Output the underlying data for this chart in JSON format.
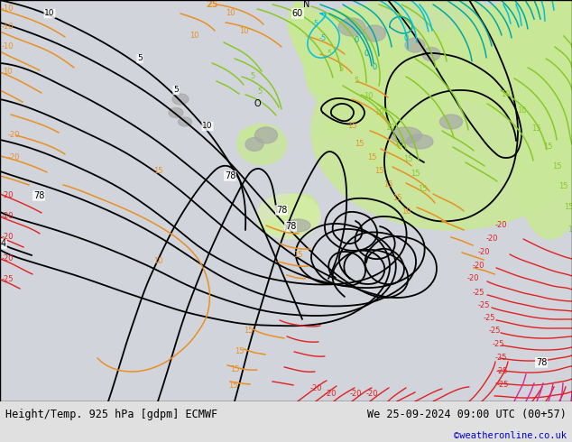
{
  "title_left": "Height/Temp. 925 hPa [gdpm] ECMWF",
  "title_right": "We 25-09-2024 09:00 UTC (00+57)",
  "copyright": "©weatheronline.co.uk",
  "sea_color": "#d8d8e0",
  "land_light_green": "#c8e8a0",
  "land_grey": "#b8b8b8",
  "bottom_bar_color": "#e0e0e0",
  "title_color": "#000000",
  "copyright_color": "#0000cc",
  "figsize": [
    6.34,
    4.9
  ],
  "dpi": 100
}
